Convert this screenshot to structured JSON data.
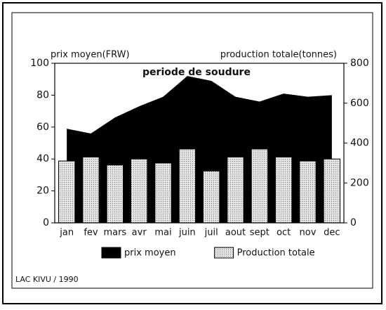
{
  "chart_data": {
    "type": "bar",
    "annotation": "periode de soudure",
    "ylabel": "prix moyen(FRW)",
    "y2label": "production totale(tonnes)",
    "source": "LAC KIVU / 1990",
    "categories": [
      "jan",
      "fev",
      "mars",
      "avr",
      "mai",
      "juin",
      "juil",
      "aout",
      "sept",
      "oct",
      "nov",
      "dec"
    ],
    "series": [
      {
        "name": "prix moyen",
        "type": "area",
        "color": "#000000",
        "values": [
          59,
          56,
          66,
          73,
          79,
          92,
          89,
          79,
          76,
          81,
          79,
          80
        ]
      },
      {
        "name": "Production totale",
        "type": "bar",
        "color": "#e4e4e4",
        "axis": "y2",
        "values": [
          310,
          330,
          290,
          320,
          300,
          370,
          260,
          330,
          370,
          330,
          310,
          320
        ]
      }
    ],
    "ylim": [
      0,
      100
    ],
    "yticks": [
      0,
      20,
      40,
      60,
      80,
      100
    ],
    "y2lim": [
      0,
      800
    ],
    "y2ticks": [
      0,
      200,
      400,
      600,
      800
    ],
    "grid": false,
    "legend": "bottom"
  }
}
